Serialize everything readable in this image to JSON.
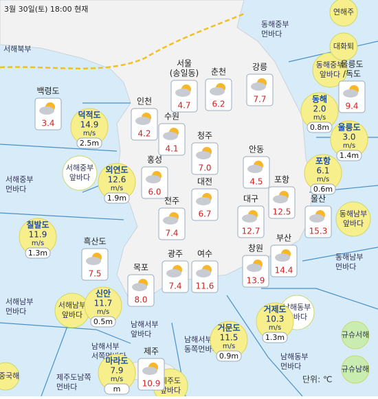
{
  "header": {
    "time": "3월 30일(토) 18:00 현재",
    "unit": "단위: ℃"
  },
  "cities": [
    {
      "name": "백령도",
      "temp": "3.4"
    },
    {
      "name": "서울",
      "sub": "(송일동)",
      "temp": "4.7"
    },
    {
      "name": "춘천",
      "temp": "6.2"
    },
    {
      "name": "강릉",
      "temp": "7.7"
    },
    {
      "name": "울릉도",
      "sub": "/독도",
      "temp": "9.4"
    },
    {
      "name": "인천",
      "temp": "4.2"
    },
    {
      "name": "수원",
      "temp": "4.1"
    },
    {
      "name": "청주",
      "temp": "7.0"
    },
    {
      "name": "안동",
      "temp": "4.5"
    },
    {
      "name": "홍성",
      "temp": "6.0"
    },
    {
      "name": "대전",
      "temp": "6.7"
    },
    {
      "name": "포항",
      "temp": "12.5"
    },
    {
      "name": "대구",
      "temp": "12.7"
    },
    {
      "name": "울산",
      "temp": "15.3"
    },
    {
      "name": "전주",
      "temp": "7.4"
    },
    {
      "name": "흑산도",
      "temp": "7.5"
    },
    {
      "name": "부산",
      "temp": "14.4"
    },
    {
      "name": "창원",
      "temp": "13.9"
    },
    {
      "name": "광주",
      "temp": "7.4"
    },
    {
      "name": "여수",
      "temp": "11.6"
    },
    {
      "name": "목포",
      "temp": "8.0"
    },
    {
      "name": "제주",
      "temp": "10.9"
    }
  ],
  "wind_unit": "m/s",
  "stations": [
    {
      "name": "덕적도",
      "wind": "14.9",
      "wave": "2.5m"
    },
    {
      "name": "외연도",
      "wind": "12.6",
      "wave": "1.9m"
    },
    {
      "name": "칠발도",
      "wind": "11.9",
      "wave": "1.3m"
    },
    {
      "name": "신안",
      "wind": "11.7",
      "wave": "0.5m"
    },
    {
      "name": "마라도",
      "wind": "7.9",
      "wave": "m"
    },
    {
      "name": "거문도",
      "wind": "11.5",
      "wave": "0.9m"
    },
    {
      "name": "거제도",
      "wind": "10.3",
      "wave": "1.3m"
    },
    {
      "name": "포항",
      "wind": "6.1",
      "wave": "0.6m"
    },
    {
      "name": "울릉도",
      "wind": "3.0",
      "wave": "1.4m"
    },
    {
      "name": "동해",
      "wind": "2.0",
      "wave": "0.8m"
    }
  ],
  "regions": [
    [
      "서해북부"
    ],
    [
      "동해중부",
      "먼바다"
    ],
    [
      "서해중부",
      "먼바다"
    ],
    [
      "서해중부",
      "앞바다"
    ],
    [
      "동해중부",
      "앞바다"
    ],
    [
      "동해남부",
      "앞바다"
    ],
    [
      "동해남부",
      "먼바다"
    ],
    [
      "서해남부",
      "앞바다"
    ],
    [
      "서해남부",
      "먼바다"
    ],
    [
      "남해서부",
      "앞바다"
    ],
    [
      "남해서부",
      "서쪽먼바다"
    ],
    [
      "남해서부",
      "동쪽먼바다"
    ],
    [
      "남해동부",
      "앞바다"
    ],
    [
      "남해동부",
      "먼바다"
    ],
    [
      "제주도남쪽",
      "먼바다"
    ],
    [
      "제주도",
      "앞바다"
    ],
    [
      "동중국해"
    ],
    [
      "연해주"
    ],
    [
      "대화퇴"
    ],
    [
      "규슈서해"
    ],
    [
      "규슈남해"
    ]
  ]
}
